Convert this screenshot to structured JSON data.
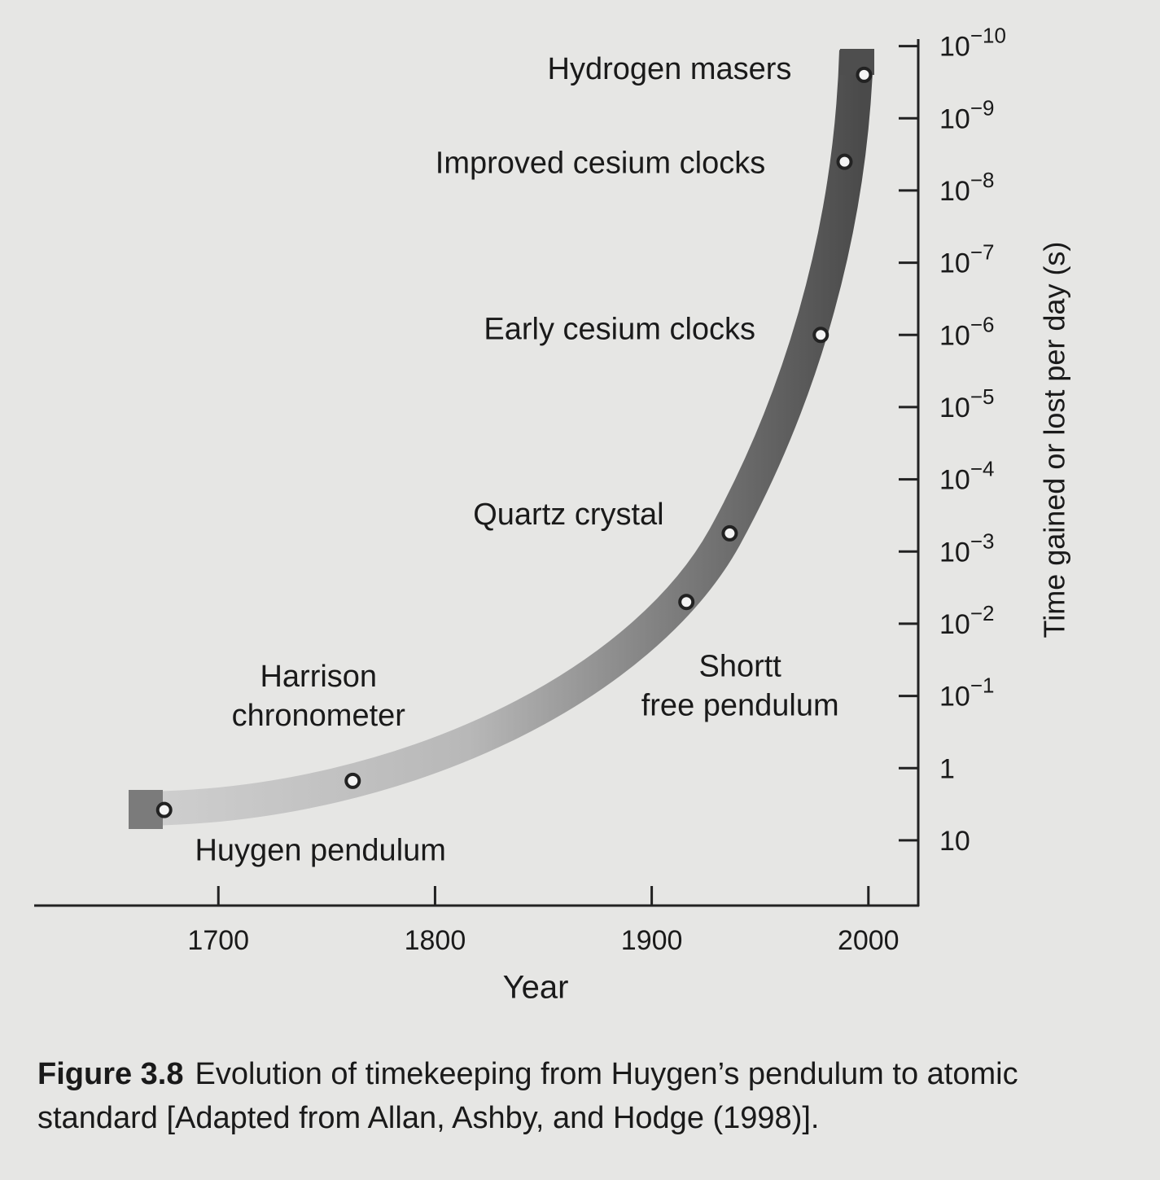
{
  "chart_data": {
    "type": "scatter",
    "x_label": "Year",
    "y_label": "Time gained or lost per day (s)",
    "y_log": true,
    "xlim": [
      1615,
      2023
    ],
    "xticks": [
      1700,
      1800,
      1900,
      2000
    ],
    "ylim": [
      80,
      8e-11
    ],
    "yticks": [
      {
        "value": 1e-10,
        "label": "10−10"
      },
      {
        "value": 1e-09,
        "label": "10−9"
      },
      {
        "value": 1e-08,
        "label": "10−8"
      },
      {
        "value": 1e-07,
        "label": "10−7"
      },
      {
        "value": 1e-06,
        "label": "10−6"
      },
      {
        "value": 1e-05,
        "label": "10−5"
      },
      {
        "value": 0.0001,
        "label": "10−4"
      },
      {
        "value": 0.001,
        "label": "10−3"
      },
      {
        "value": 0.01,
        "label": "10−2"
      },
      {
        "value": 0.1,
        "label": "10−1"
      },
      1,
      10
    ],
    "x": [
      1675,
      1762,
      1916,
      1936,
      1978,
      1989,
      1998
    ],
    "values": [
      3.8,
      1.5,
      0.005,
      0.00056,
      1e-06,
      4e-09,
      2.5e-10
    ],
    "labels": [
      [
        "Huygen pendulum"
      ],
      [
        "Harrison",
        "chronometer"
      ],
      [
        "Shortt",
        "free pendulum"
      ],
      [
        "Quartz crystal"
      ],
      [
        "Early cesium clocks"
      ],
      [
        "Improved cesium clocks"
      ],
      [
        "Hydrogen masers"
      ]
    ],
    "caption_label": "Figure 3.8",
    "caption": "Evolution of timekeeping from Huygen’s pendulum to atomic standard [Adapted from Allan, Ashby, and Hodge (1998)]."
  }
}
